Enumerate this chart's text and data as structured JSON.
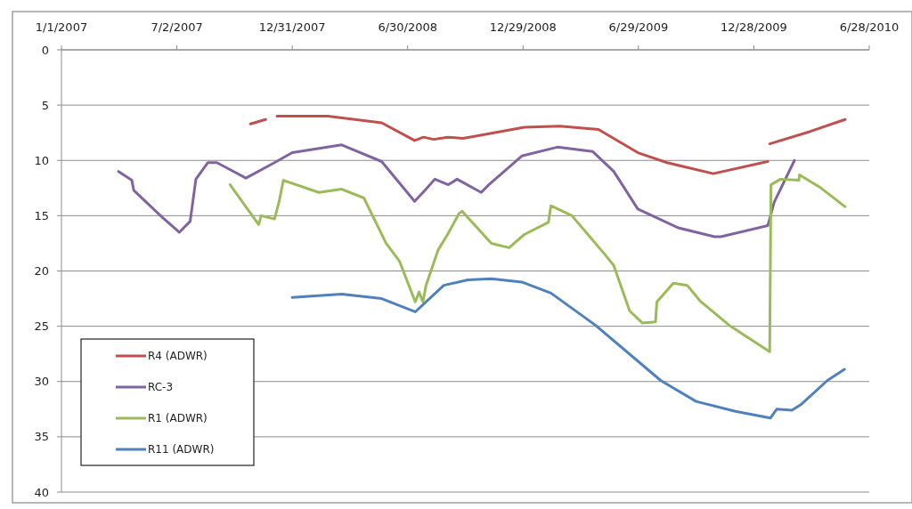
{
  "chart_data": {
    "type": "line",
    "xlim": [
      "2007-01-01",
      "2010-06-28"
    ],
    "xticks": [
      {
        "value": "2007-01-01",
        "label": "1/1/2007"
      },
      {
        "value": "2007-07-02",
        "label": "7/2/2007"
      },
      {
        "value": "2007-12-31",
        "label": "12/31/2007"
      },
      {
        "value": "2008-06-30",
        "label": "6/30/2008"
      },
      {
        "value": "2008-12-29",
        "label": "12/29/2008"
      },
      {
        "value": "2009-06-29",
        "label": "6/29/2009"
      },
      {
        "value": "2009-12-28",
        "label": "12/28/2009"
      },
      {
        "value": "2010-06-28",
        "label": "6/28/2010"
      }
    ],
    "ylim": [
      40,
      0
    ],
    "yticks": [
      0,
      5,
      10,
      15,
      20,
      25,
      30,
      35,
      40
    ],
    "grid": "y",
    "legend": "bottom left",
    "marker": "none",
    "line_style": "solid",
    "series": [
      {
        "name": "R4 (ADWR)",
        "color": "#c0504d",
        "x": [
          "2007-10-26",
          "2007-11-19",
          "2007-11-28",
          "2007-12-07",
          "2008-02-25",
          "2008-05-20",
          "2008-07-11",
          "2008-07-25",
          "2008-08-10",
          "2008-09-01",
          "2008-09-25",
          "2008-10-15",
          "2008-12-31",
          "2009-02-25",
          "2009-04-27",
          "2009-06-28",
          "2009-08-13",
          "2009-10-25",
          "2010-01-19",
          "2010-01-20",
          "2010-01-22",
          "2010-03-26",
          "2010-05-21"
        ],
        "values": [
          6.7,
          6.3,
          null,
          6.0,
          6.0,
          6.6,
          8.2,
          7.9,
          8.1,
          7.9,
          8.0,
          7.8,
          7.0,
          6.9,
          7.2,
          9.3,
          10.2,
          11.2,
          10.1,
          null,
          8.5,
          7.4,
          6.3
        ]
      },
      {
        "name": "RC-3",
        "color": "#8064a2",
        "x": [
          "2007-04-01",
          "2007-04-22",
          "2007-04-25",
          "2007-06-10",
          "2007-07-06",
          "2007-07-23",
          "2007-08-01",
          "2007-08-20",
          "2007-09-03",
          "2007-10-19",
          "2007-12-03",
          "2007-12-31",
          "2008-03-18",
          "2008-05-20",
          "2008-07-11",
          "2008-07-29",
          "2008-08-12",
          "2008-09-02",
          "2008-09-16",
          "2008-10-24",
          "2008-11-05",
          "2008-12-27",
          "2009-02-21",
          "2009-04-18",
          "2009-05-21",
          "2009-06-28",
          "2009-08-31",
          "2009-10-27",
          "2009-11-06",
          "2010-01-19",
          "2010-01-29",
          "2010-03-02"
        ],
        "values": [
          11.0,
          11.8,
          12.7,
          15.2,
          16.5,
          15.5,
          11.7,
          10.2,
          10.2,
          11.6,
          10.2,
          9.3,
          8.6,
          10.1,
          13.7,
          12.6,
          11.7,
          12.2,
          11.7,
          12.9,
          12.2,
          9.6,
          8.8,
          9.2,
          11.0,
          14.4,
          16.1,
          16.9,
          16.9,
          15.9,
          13.8,
          10.0
        ]
      },
      {
        "name": "R1 (ADWR)",
        "color": "#9bbb59",
        "x": [
          "2007-09-24",
          "2007-11-08",
          "2007-11-12",
          "2007-12-03",
          "2007-12-10",
          "2007-12-17",
          "2008-02-11",
          "2008-03-18",
          "2008-04-22",
          "2008-05-27",
          "2008-06-17",
          "2008-07-12",
          "2008-07-18",
          "2008-07-24",
          "2008-07-29",
          "2008-08-17",
          "2008-09-01",
          "2008-09-19",
          "2008-09-24",
          "2008-11-09",
          "2008-12-07",
          "2008-12-31",
          "2009-02-07",
          "2009-02-11",
          "2009-03-16",
          "2009-05-07",
          "2009-05-21",
          "2009-06-15",
          "2009-07-05",
          "2009-07-26",
          "2009-07-28",
          "2009-08-23",
          "2009-09-14",
          "2009-10-04",
          "2009-11-19",
          "2010-01-22",
          "2010-01-24",
          "2010-02-08",
          "2010-03-09",
          "2010-03-10",
          "2010-04-13",
          "2010-05-21"
        ],
        "values": [
          12.2,
          15.8,
          15.0,
          15.3,
          13.8,
          11.8,
          12.9,
          12.6,
          13.4,
          17.5,
          19.1,
          22.8,
          21.9,
          22.8,
          21.3,
          18.1,
          16.7,
          14.8,
          14.6,
          17.5,
          17.9,
          16.7,
          15.6,
          14.1,
          15.0,
          18.5,
          19.5,
          23.6,
          24.7,
          24.6,
          22.8,
          21.1,
          21.3,
          22.7,
          24.9,
          27.3,
          12.2,
          11.7,
          11.8,
          11.3,
          12.5,
          14.2
        ]
      },
      {
        "name": "R11 (ADWR)",
        "color": "#4f81bd",
        "x": [
          "2007-12-31",
          "2008-03-18",
          "2008-05-20",
          "2008-07-12",
          "2008-08-26",
          "2008-10-03",
          "2008-11-09",
          "2008-12-27",
          "2009-02-11",
          "2009-04-22",
          "2009-08-03",
          "2009-09-28",
          "2009-11-29",
          "2010-01-23",
          "2010-02-02",
          "2010-02-26",
          "2010-03-12",
          "2010-04-23",
          "2010-05-20"
        ],
        "values": [
          22.4,
          22.1,
          22.5,
          23.7,
          21.3,
          20.8,
          20.7,
          21.0,
          22.0,
          24.9,
          29.9,
          31.8,
          32.7,
          33.3,
          32.5,
          32.6,
          32.1,
          29.9,
          28.9
        ]
      }
    ]
  }
}
